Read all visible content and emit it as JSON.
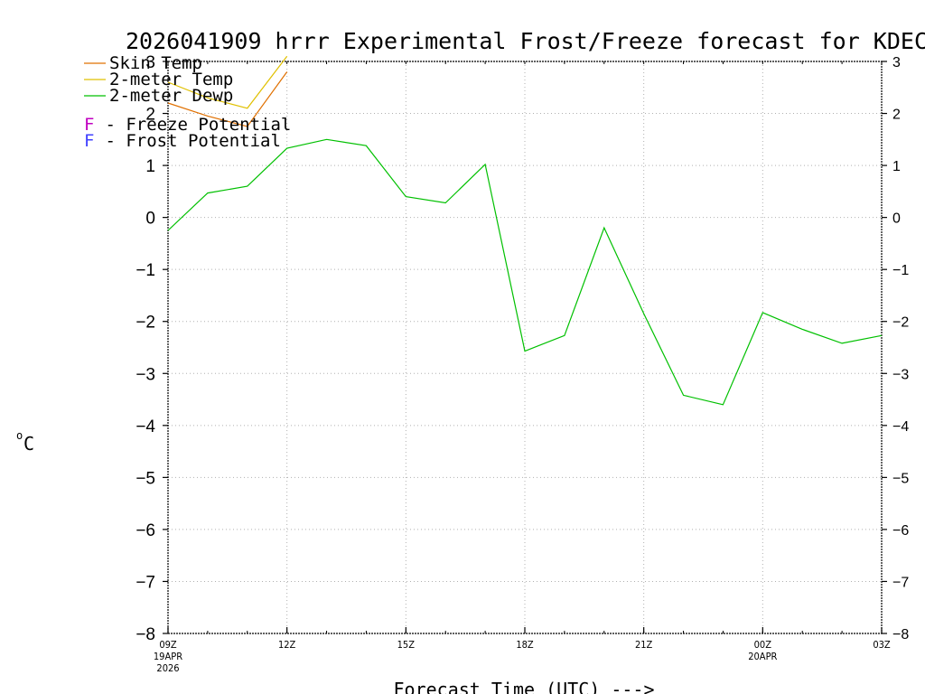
{
  "chart_data": {
    "type": "line",
    "title": "2026041909 hrrr Experimental Frost/Freeze forecast for KDEC",
    "xlabel": "Forecast Time (UTC) --->",
    "ylabel": "°C",
    "ylabel_degree": "o",
    "ylabel_unit": "C",
    "ylim": [
      -8,
      3
    ],
    "yticks": [
      3,
      2,
      1,
      0,
      -1,
      -2,
      -3,
      -4,
      -5,
      -6,
      -7,
      -8
    ],
    "ytick_labels": [
      "3",
      "2",
      "1",
      "0",
      "−1",
      "−2",
      "−3",
      "−4",
      "−5",
      "−6",
      "−7",
      "−8"
    ],
    "xlim": [
      0,
      18
    ],
    "xticks": [
      {
        "x": 0,
        "label": "09Z",
        "sub1": "19APR",
        "sub2": "2026"
      },
      {
        "x": 3,
        "label": "12Z",
        "sub1": "",
        "sub2": ""
      },
      {
        "x": 6,
        "label": "15Z",
        "sub1": "",
        "sub2": ""
      },
      {
        "x": 9,
        "label": "18Z",
        "sub1": "",
        "sub2": ""
      },
      {
        "x": 12,
        "label": "21Z",
        "sub1": "",
        "sub2": ""
      },
      {
        "x": 15,
        "label": "00Z",
        "sub1": "20APR",
        "sub2": ""
      },
      {
        "x": 18,
        "label": "03Z",
        "sub1": "",
        "sub2": ""
      }
    ],
    "series": [
      {
        "name": "Skin Temp",
        "color": "#e07000",
        "x": [
          0,
          1,
          2,
          3
        ],
        "values": [
          2.2,
          1.95,
          1.75,
          2.8
        ]
      },
      {
        "name": "2-meter Temp",
        "color": "#e0c000",
        "x": [
          0,
          1,
          2,
          3
        ],
        "values": [
          2.6,
          2.3,
          2.1,
          3.1
        ]
      },
      {
        "name": "2-meter Dewp",
        "color": "#00c000",
        "x": [
          0,
          1,
          2,
          3,
          4,
          5,
          6,
          7,
          8,
          9,
          10,
          11,
          12,
          13,
          14,
          15,
          16,
          17,
          18
        ],
        "values": [
          -0.25,
          0.47,
          0.6,
          1.33,
          1.5,
          1.38,
          0.4,
          0.28,
          1.02,
          -2.57,
          -2.27,
          -0.2,
          -1.85,
          -3.42,
          -3.6,
          -1.83,
          -2.15,
          -2.42,
          -2.27
        ]
      }
    ],
    "legend": [
      {
        "text": "Skin Temp",
        "color": "#e07000"
      },
      {
        "text": "2-meter Temp",
        "color": "#e0c000"
      },
      {
        "text": "2-meter Dewp",
        "color": "#00c000"
      }
    ],
    "annotations": [
      {
        "letter": "F",
        "text": " - Freeze Potential",
        "color": "#c000c0"
      },
      {
        "letter": "F",
        "text": " - Frost Potential",
        "color": "#4040ff"
      }
    ]
  }
}
